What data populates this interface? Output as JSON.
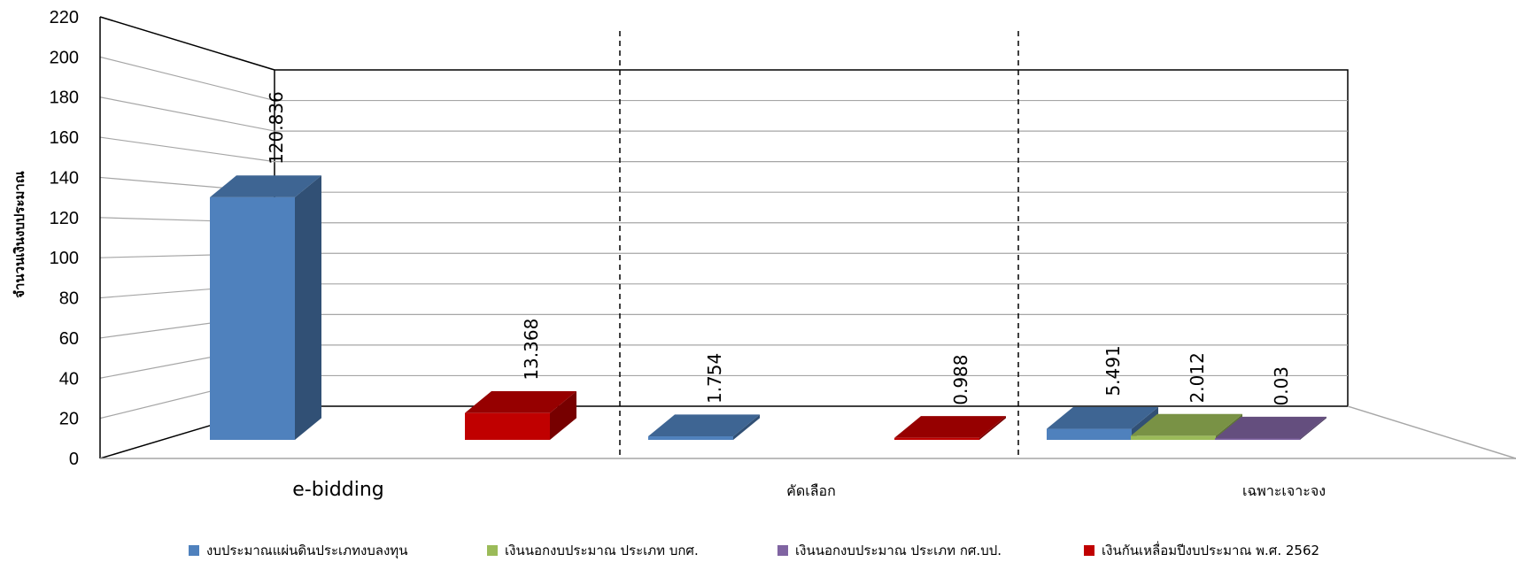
{
  "chart_data": {
    "type": "bar",
    "title": "",
    "xlabel": "",
    "ylabel": "จำนวนเงินงบประมาณ",
    "ylim": [
      0,
      220
    ],
    "yticks": [
      "0",
      "20",
      "40",
      "60",
      "80",
      "100",
      "120",
      "140",
      "160",
      "180",
      "200",
      "220"
    ],
    "grid": true,
    "legend_position": "bottom",
    "categories": [
      "e-bidding",
      "คัดเลือก",
      "เฉพาะเจาะจง"
    ],
    "series": [
      {
        "name": "งบประมาณแผ่นดินประเภทงบลงทุน",
        "color": "#4f81bd",
        "values": [
          120.836,
          1.754,
          5.491
        ],
        "labels": [
          "120.836",
          "1.754",
          "5.491"
        ]
      },
      {
        "name": "เงินนอกงบประมาณ ประเภท บกศ.",
        "color": "#9bbb59",
        "values": [
          null,
          null,
          2.012
        ],
        "labels": [
          "",
          "",
          "2.012"
        ]
      },
      {
        "name": "เงินนอกงบประมาณ ประเภท กศ.บป.",
        "color": "#8064a2",
        "values": [
          null,
          null,
          0.03
        ],
        "labels": [
          "",
          "",
          "0.03"
        ]
      },
      {
        "name": "เงินกันเหลื่อมปีงบประมาณ พ.ศ. 2562",
        "color": "#c00000",
        "values": [
          13.368,
          0.988,
          null
        ],
        "labels": [
          "13.368",
          "0.988",
          ""
        ]
      }
    ]
  }
}
